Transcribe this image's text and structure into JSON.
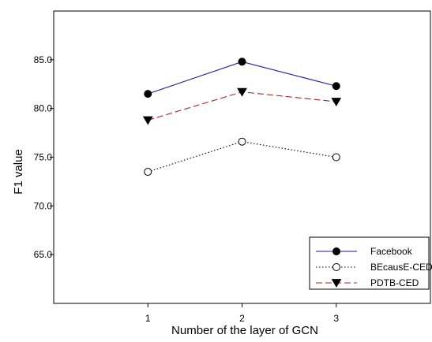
{
  "chart_data": {
    "type": "line",
    "title": "",
    "xlabel": "Number of the layer of GCN",
    "ylabel": "F1 value",
    "categories": [
      "1",
      "2",
      "3"
    ],
    "x": [
      1,
      2,
      3
    ],
    "xlim": [
      0,
      4
    ],
    "ylim": [
      60,
      90
    ],
    "yticks": [
      "65.0",
      "70.0",
      "75.0",
      "80.0",
      "85.0"
    ],
    "ytick_values": [
      65,
      70,
      75,
      80,
      85
    ],
    "grid": false,
    "legend_position": "bottom-right",
    "series": [
      {
        "name": "Facebook",
        "values": [
          81.5,
          84.8,
          82.3
        ],
        "color": "#1a1aa8",
        "dash": "solid",
        "marker": "filled-circle",
        "marker_color": "#000000"
      },
      {
        "name": "BEcausE-CED",
        "values": [
          73.5,
          76.6,
          75.0
        ],
        "color": "#000000",
        "dash": "dotted",
        "marker": "open-circle",
        "marker_color": "#000000"
      },
      {
        "name": "PDTB-CED",
        "values": [
          78.8,
          81.7,
          80.7
        ],
        "color": "#b22222",
        "dash": "dashed",
        "marker": "filled-triangle-down",
        "marker_color": "#000000"
      }
    ]
  }
}
